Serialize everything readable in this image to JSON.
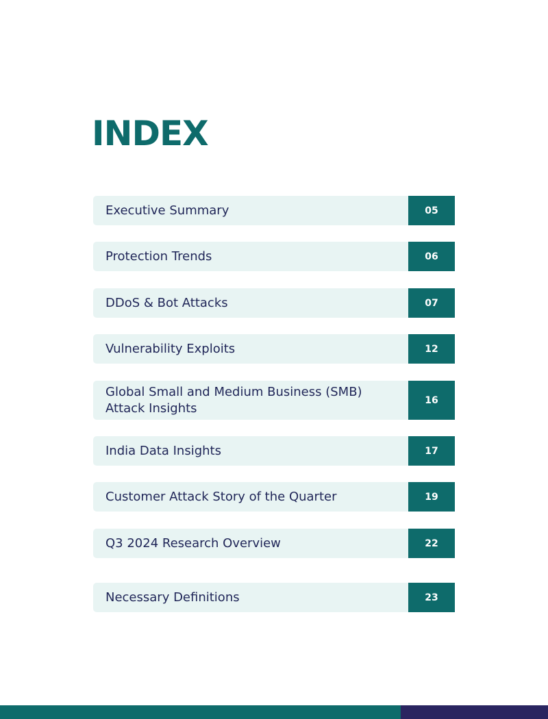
{
  "title": "INDEX",
  "entries": [
    {
      "label": "Executive Summary",
      "page": "05"
    },
    {
      "label": "Protection Trends",
      "page": "06"
    },
    {
      "label": "DDoS & Bot Attacks",
      "page": "07"
    },
    {
      "label": "Vulnerability Exploits",
      "page": "12"
    },
    {
      "label": "Global Small and Medium Business (SMB) Attack Insights",
      "page": "16"
    },
    {
      "label": "India Data Insights",
      "page": "17"
    },
    {
      "label": "Customer Attack Story of the Quarter",
      "page": "19"
    },
    {
      "label": "Q3 2024 Research Overview",
      "page": "22"
    },
    {
      "label": "Necessary Definitions",
      "page": "23"
    }
  ]
}
